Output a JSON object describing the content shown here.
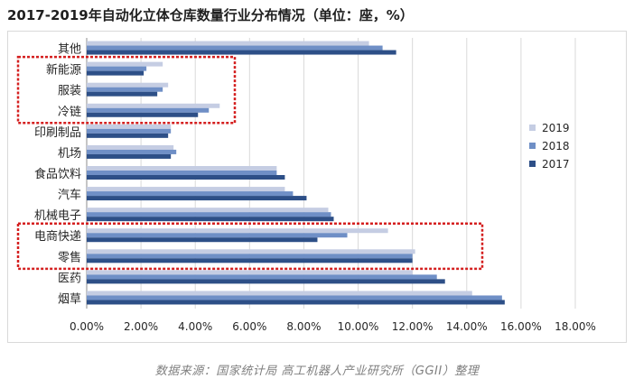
{
  "title": "2017-2019年自动化立体仓库数量行业分布情况（单位：座，%）",
  "source": "数据来源：国家统计局  高工机器人产业研究所（GGII）整理",
  "colors": {
    "2019": "#c5cde3",
    "2018": "#6f8fc6",
    "2017": "#2d4f87",
    "highlight": "#d41f1f"
  },
  "chart_data": {
    "type": "bar",
    "orientation": "horizontal",
    "title": "2017-2019年自动化立体仓库数量行业分布情况（单位：座，%）",
    "categories": [
      "其他",
      "新能源",
      "服装",
      "冷链",
      "印刷制品",
      "机场",
      "食品饮料",
      "汽车",
      "机械电子",
      "电商快递",
      "零售",
      "医药",
      "烟草"
    ],
    "series": [
      {
        "name": "2019",
        "values": [
          10.4,
          2.8,
          3.0,
          4.9,
          3.1,
          3.2,
          7.0,
          7.3,
          8.9,
          11.1,
          12.1,
          12.0,
          14.2
        ]
      },
      {
        "name": "2018",
        "values": [
          10.9,
          2.2,
          2.8,
          4.5,
          3.1,
          3.3,
          7.0,
          7.6,
          9.0,
          9.6,
          12.0,
          12.9,
          15.3
        ]
      },
      {
        "name": "2017",
        "values": [
          11.4,
          2.1,
          2.6,
          4.1,
          3.0,
          3.1,
          7.3,
          8.1,
          9.1,
          8.5,
          12.0,
          13.2,
          15.4
        ]
      }
    ],
    "xlim": [
      0,
      18
    ],
    "xticks": [
      "0.00%",
      "2.00%",
      "4.00%",
      "6.00%",
      "8.00%",
      "10.00%",
      "12.00%",
      "14.00%",
      "16.00%",
      "18.00%"
    ],
    "legend": [
      "2019",
      "2018",
      "2017"
    ],
    "legend_position": "right",
    "grid": true,
    "highlight_groups": [
      [
        "新能源",
        "服装",
        "冷链"
      ],
      [
        "电商快递",
        "零售"
      ]
    ]
  }
}
